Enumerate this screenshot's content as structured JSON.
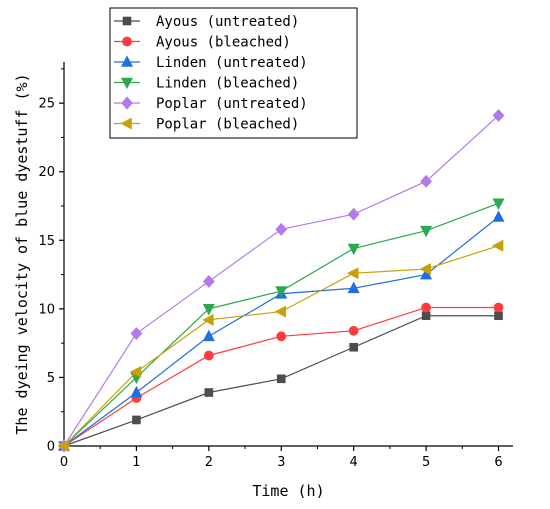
{
  "chart_data": {
    "type": "line",
    "xlabel": "Time (h)",
    "ylabel": "The dyeing velocity of blue dyestuff (%)",
    "xlim": [
      0,
      6.2
    ],
    "ylim": [
      0,
      28
    ],
    "xticks": [
      0,
      1,
      2,
      3,
      4,
      5,
      6
    ],
    "yticks": [
      0,
      5,
      10,
      15,
      20,
      25
    ],
    "x": [
      0,
      1,
      2,
      3,
      4,
      5,
      6
    ],
    "grid": false,
    "legend_position": "top-left",
    "series": [
      {
        "name": "Ayous (untreated)",
        "color": "#4d4d4d",
        "marker": "square",
        "values": [
          0,
          1.9,
          3.9,
          4.9,
          7.2,
          9.5,
          9.5
        ]
      },
      {
        "name": "Ayous (bleached)",
        "color": "#ff3b3b",
        "marker": "circle",
        "values": [
          0,
          3.5,
          6.6,
          8.0,
          8.4,
          10.1,
          10.1
        ]
      },
      {
        "name": "Linden (untreated)",
        "color": "#1f6fe0",
        "marker": "triangle-up",
        "values": [
          0,
          3.9,
          8.0,
          11.1,
          11.5,
          12.5,
          16.7
        ]
      },
      {
        "name": "Linden (bleached)",
        "color": "#2ca84f",
        "marker": "triangle-down",
        "values": [
          0,
          5.0,
          10.0,
          11.3,
          14.4,
          15.7,
          17.7
        ]
      },
      {
        "name": "Poplar (untreated)",
        "color": "#b27bea",
        "marker": "diamond",
        "values": [
          0,
          8.2,
          12.0,
          15.8,
          16.9,
          19.3,
          24.1
        ]
      },
      {
        "name": "Poplar (bleached)",
        "color": "#c9a008",
        "marker": "triangle-left",
        "values": [
          0,
          5.4,
          9.2,
          9.8,
          12.6,
          12.9,
          14.6
        ]
      }
    ]
  }
}
